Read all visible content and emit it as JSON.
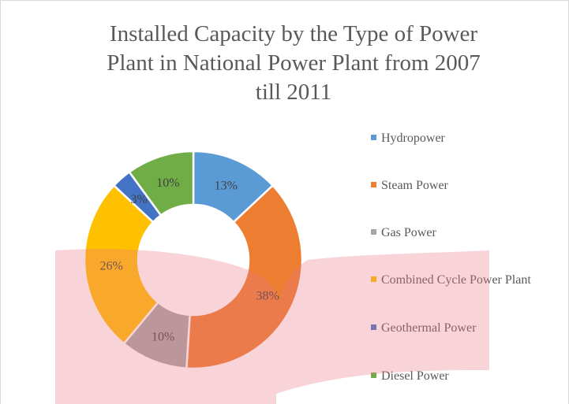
{
  "chart_data": {
    "type": "donut",
    "title": [
      "Installed Capacity  by the Type of Power",
      "Plant in National Power Plant from 2007",
      "till 2011"
    ],
    "categories": [
      "Hydropower",
      "Steam Power",
      "Gas Power",
      "Combined Cycle Power Plant",
      "Geothermal Power",
      "Diesel Power"
    ],
    "values": [
      13,
      38,
      10,
      26,
      3,
      10
    ],
    "value_labels": [
      "13%",
      "38%",
      "10%",
      "26%",
      "3%",
      "10%"
    ],
    "colors": [
      "#5b9bd5",
      "#ed7d31",
      "#a5a5a5",
      "#ffc000",
      "#4472c4",
      "#70ad47"
    ]
  }
}
